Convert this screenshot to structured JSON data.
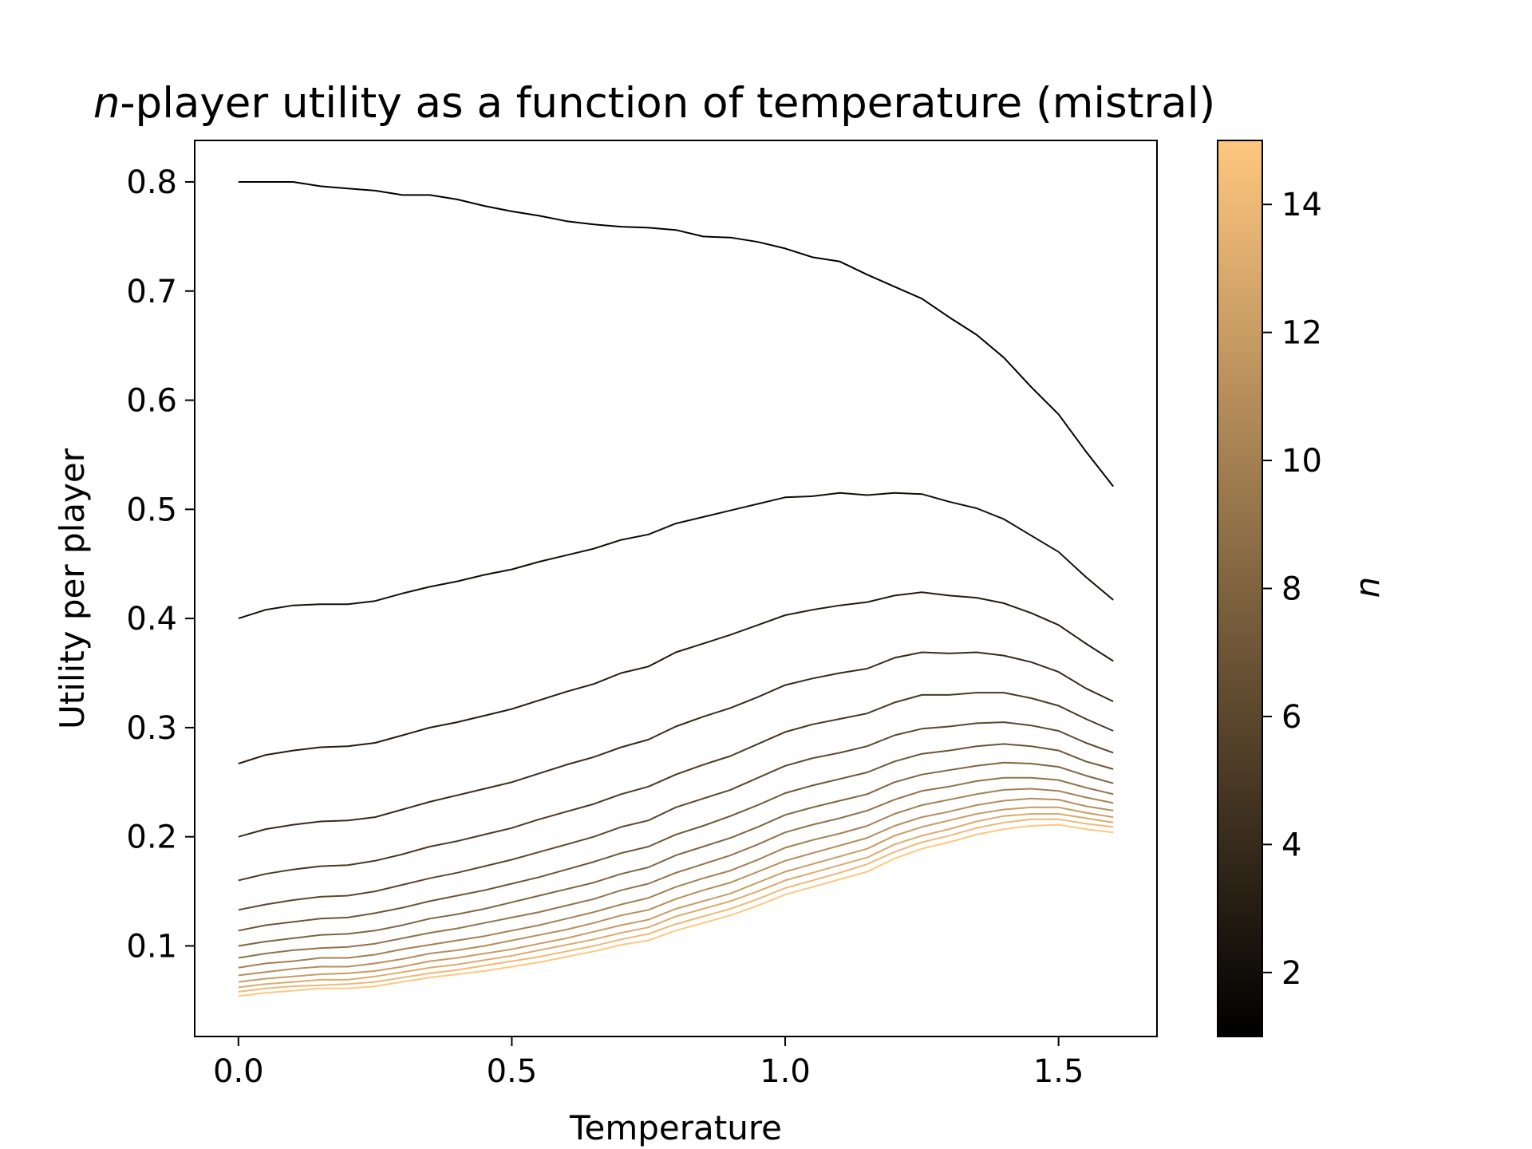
{
  "chart_data": {
    "type": "line",
    "title_italic": "n",
    "title_rest": "-player utility as a function of temperature (mistral)",
    "xlabel": "Temperature",
    "ylabel": "Utility per player",
    "xlim": [
      -0.08,
      1.68
    ],
    "ylim": [
      0.017,
      0.838
    ],
    "xticks": [
      0.0,
      0.5,
      1.0,
      1.5
    ],
    "xtick_labels": [
      "0.0",
      "0.5",
      "1.0",
      "1.5"
    ],
    "yticks": [
      0.1,
      0.2,
      0.3,
      0.4,
      0.5,
      0.6,
      0.7,
      0.8
    ],
    "ytick_labels": [
      "0.1",
      "0.2",
      "0.3",
      "0.4",
      "0.5",
      "0.6",
      "0.7",
      "0.8"
    ],
    "grid": false,
    "x": [
      0.0,
      0.05,
      0.1,
      0.15,
      0.2,
      0.25,
      0.3,
      0.35,
      0.4,
      0.45,
      0.5,
      0.55,
      0.6,
      0.65,
      0.7,
      0.75,
      0.8,
      0.85,
      0.9,
      0.95,
      1.0,
      1.05,
      1.1,
      1.15,
      1.2,
      1.25,
      1.3,
      1.35,
      1.4,
      1.45,
      1.5,
      1.55,
      1.6
    ],
    "series": [
      {
        "name": "n=1",
        "n": 1,
        "values": [
          0.8,
          0.8,
          0.8,
          0.796,
          0.794,
          0.792,
          0.788,
          0.788,
          0.784,
          0.778,
          0.773,
          0.769,
          0.764,
          0.761,
          0.759,
          0.758,
          0.756,
          0.75,
          0.749,
          0.745,
          0.739,
          0.731,
          0.727,
          0.715,
          0.704,
          0.693,
          0.676,
          0.66,
          0.639,
          0.612,
          0.587,
          0.553,
          0.521
        ]
      },
      {
        "name": "n=2",
        "n": 2,
        "values": [
          0.4,
          0.408,
          0.412,
          0.413,
          0.413,
          0.416,
          0.423,
          0.429,
          0.434,
          0.44,
          0.445,
          0.452,
          0.458,
          0.464,
          0.472,
          0.477,
          0.487,
          0.493,
          0.499,
          0.505,
          0.511,
          0.512,
          0.515,
          0.513,
          0.515,
          0.514,
          0.507,
          0.501,
          0.491,
          0.476,
          0.461,
          0.438,
          0.417
        ]
      }
    ],
    "family": {
      "n_from": 3,
      "n_to": 15,
      "description": "curves for n = 3..15 continue the pattern; values listed per n",
      "values_by_n": {
        "3": [
          0.267,
          0.275,
          0.279,
          0.282,
          0.283,
          0.286,
          0.293,
          0.3,
          0.305,
          0.311,
          0.317,
          0.325,
          0.333,
          0.34,
          0.35,
          0.356,
          0.369,
          0.377,
          0.385,
          0.394,
          0.403,
          0.408,
          0.412,
          0.415,
          0.421,
          0.424,
          0.421,
          0.419,
          0.414,
          0.405,
          0.394,
          0.377,
          0.361
        ],
        "4": [
          0.2,
          0.207,
          0.211,
          0.214,
          0.215,
          0.218,
          0.225,
          0.232,
          0.238,
          0.244,
          0.25,
          0.258,
          0.266,
          0.273,
          0.282,
          0.289,
          0.301,
          0.31,
          0.318,
          0.328,
          0.339,
          0.345,
          0.35,
          0.354,
          0.364,
          0.369,
          0.368,
          0.369,
          0.366,
          0.36,
          0.351,
          0.336,
          0.324
        ],
        "5": [
          0.16,
          0.166,
          0.17,
          0.173,
          0.174,
          0.178,
          0.184,
          0.191,
          0.196,
          0.202,
          0.208,
          0.216,
          0.223,
          0.23,
          0.239,
          0.246,
          0.257,
          0.266,
          0.274,
          0.285,
          0.296,
          0.303,
          0.308,
          0.313,
          0.323,
          0.33,
          0.33,
          0.332,
          0.332,
          0.327,
          0.32,
          0.308,
          0.297
        ],
        "6": [
          0.133,
          0.138,
          0.142,
          0.145,
          0.146,
          0.15,
          0.156,
          0.162,
          0.167,
          0.173,
          0.179,
          0.186,
          0.193,
          0.2,
          0.209,
          0.215,
          0.227,
          0.235,
          0.243,
          0.254,
          0.265,
          0.272,
          0.277,
          0.283,
          0.293,
          0.299,
          0.301,
          0.304,
          0.305,
          0.302,
          0.297,
          0.286,
          0.277
        ],
        "7": [
          0.114,
          0.119,
          0.122,
          0.125,
          0.126,
          0.13,
          0.135,
          0.141,
          0.146,
          0.151,
          0.157,
          0.163,
          0.17,
          0.177,
          0.185,
          0.191,
          0.202,
          0.21,
          0.219,
          0.229,
          0.24,
          0.247,
          0.253,
          0.259,
          0.269,
          0.276,
          0.279,
          0.283,
          0.285,
          0.283,
          0.279,
          0.269,
          0.262
        ],
        "8": [
          0.1,
          0.104,
          0.107,
          0.11,
          0.111,
          0.114,
          0.119,
          0.125,
          0.129,
          0.134,
          0.14,
          0.146,
          0.152,
          0.158,
          0.166,
          0.172,
          0.183,
          0.191,
          0.199,
          0.209,
          0.22,
          0.227,
          0.233,
          0.239,
          0.25,
          0.257,
          0.261,
          0.265,
          0.268,
          0.267,
          0.264,
          0.256,
          0.249
        ],
        "9": [
          0.089,
          0.093,
          0.096,
          0.098,
          0.099,
          0.102,
          0.107,
          0.112,
          0.116,
          0.121,
          0.126,
          0.131,
          0.137,
          0.143,
          0.151,
          0.157,
          0.167,
          0.175,
          0.183,
          0.193,
          0.204,
          0.211,
          0.217,
          0.224,
          0.234,
          0.242,
          0.246,
          0.251,
          0.254,
          0.254,
          0.252,
          0.245,
          0.239
        ],
        "10": [
          0.08,
          0.084,
          0.086,
          0.089,
          0.089,
          0.092,
          0.097,
          0.101,
          0.105,
          0.109,
          0.114,
          0.119,
          0.125,
          0.131,
          0.138,
          0.144,
          0.154,
          0.162,
          0.169,
          0.179,
          0.19,
          0.197,
          0.203,
          0.21,
          0.221,
          0.229,
          0.234,
          0.239,
          0.243,
          0.244,
          0.242,
          0.236,
          0.231
        ],
        "11": [
          0.073,
          0.076,
          0.079,
          0.081,
          0.081,
          0.084,
          0.088,
          0.093,
          0.096,
          0.1,
          0.105,
          0.11,
          0.115,
          0.121,
          0.128,
          0.133,
          0.143,
          0.151,
          0.158,
          0.168,
          0.178,
          0.185,
          0.192,
          0.199,
          0.21,
          0.218,
          0.223,
          0.229,
          0.233,
          0.235,
          0.234,
          0.228,
          0.224
        ],
        "12": [
          0.067,
          0.07,
          0.072,
          0.074,
          0.075,
          0.077,
          0.081,
          0.086,
          0.089,
          0.093,
          0.097,
          0.102,
          0.107,
          0.113,
          0.119,
          0.124,
          0.134,
          0.141,
          0.148,
          0.158,
          0.168,
          0.175,
          0.182,
          0.189,
          0.201,
          0.209,
          0.215,
          0.221,
          0.225,
          0.227,
          0.227,
          0.222,
          0.218
        ],
        "13": [
          0.062,
          0.065,
          0.067,
          0.069,
          0.069,
          0.072,
          0.076,
          0.08,
          0.083,
          0.087,
          0.091,
          0.096,
          0.101,
          0.106,
          0.112,
          0.117,
          0.127,
          0.134,
          0.141,
          0.15,
          0.16,
          0.167,
          0.174,
          0.181,
          0.193,
          0.201,
          0.207,
          0.214,
          0.219,
          0.221,
          0.221,
          0.217,
          0.213
        ],
        "14": [
          0.058,
          0.061,
          0.063,
          0.064,
          0.065,
          0.067,
          0.071,
          0.075,
          0.078,
          0.082,
          0.086,
          0.09,
          0.095,
          0.1,
          0.106,
          0.111,
          0.12,
          0.127,
          0.134,
          0.143,
          0.153,
          0.16,
          0.167,
          0.175,
          0.186,
          0.195,
          0.201,
          0.208,
          0.213,
          0.216,
          0.216,
          0.212,
          0.209
        ],
        "15": [
          0.054,
          0.057,
          0.059,
          0.061,
          0.061,
          0.063,
          0.067,
          0.071,
          0.074,
          0.077,
          0.081,
          0.085,
          0.09,
          0.095,
          0.101,
          0.105,
          0.114,
          0.121,
          0.128,
          0.137,
          0.147,
          0.154,
          0.161,
          0.168,
          0.18,
          0.189,
          0.195,
          0.202,
          0.207,
          0.21,
          0.211,
          0.207,
          0.204
        ]
      }
    },
    "colorbar": {
      "label": "n",
      "colormap": "copper",
      "range": [
        1,
        15
      ],
      "ticks": [
        2,
        4,
        6,
        8,
        10,
        12,
        14
      ],
      "tick_labels": [
        "2",
        "4",
        "6",
        "8",
        "10",
        "12",
        "14"
      ],
      "color_low": "#000000",
      "color_high": "#ffc77f"
    }
  }
}
